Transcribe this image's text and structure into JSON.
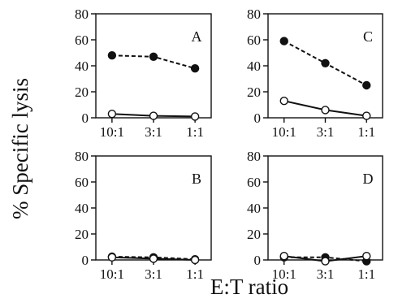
{
  "figure": {
    "ylabel": "% Specific lysis",
    "xlabel": "E:T ratio"
  },
  "chart_data": [
    {
      "type": "line",
      "panel": "A",
      "categories": [
        "10:1",
        "3:1",
        "1:1"
      ],
      "ylim": [
        0,
        80
      ],
      "yticks": [
        0,
        20,
        40,
        60,
        80
      ],
      "series": [
        {
          "marker": "filled-circle",
          "line": "dashed",
          "values": [
            48,
            47,
            38
          ]
        },
        {
          "marker": "open-circle",
          "line": "solid",
          "values": [
            3,
            1.5,
            1
          ]
        }
      ]
    },
    {
      "type": "line",
      "panel": "C",
      "categories": [
        "10:1",
        "3:1",
        "1:1"
      ],
      "ylim": [
        0,
        80
      ],
      "yticks": [
        0,
        20,
        40,
        60,
        80
      ],
      "series": [
        {
          "marker": "filled-circle",
          "line": "dashed",
          "values": [
            59,
            42,
            25
          ]
        },
        {
          "marker": "open-circle",
          "line": "solid",
          "values": [
            13,
            6,
            1.5
          ]
        }
      ]
    },
    {
      "type": "line",
      "panel": "B",
      "categories": [
        "10:1",
        "3:1",
        "1:1"
      ],
      "ylim": [
        0,
        80
      ],
      "yticks": [
        0,
        20,
        40,
        60,
        80
      ],
      "series": [
        {
          "marker": "filled-circle",
          "line": "dashed",
          "values": [
            2.5,
            2,
            0.5
          ]
        },
        {
          "marker": "open-circle",
          "line": "solid",
          "values": [
            2,
            1,
            0
          ]
        }
      ]
    },
    {
      "type": "line",
      "panel": "D",
      "categories": [
        "10:1",
        "3:1",
        "1:1"
      ],
      "ylim": [
        0,
        80
      ],
      "yticks": [
        0,
        20,
        40,
        60,
        80
      ],
      "series": [
        {
          "marker": "filled-circle",
          "line": "dashed",
          "values": [
            2,
            2,
            -1
          ]
        },
        {
          "marker": "open-circle",
          "line": "solid",
          "values": [
            3,
            -1,
            3
          ]
        }
      ]
    }
  ]
}
